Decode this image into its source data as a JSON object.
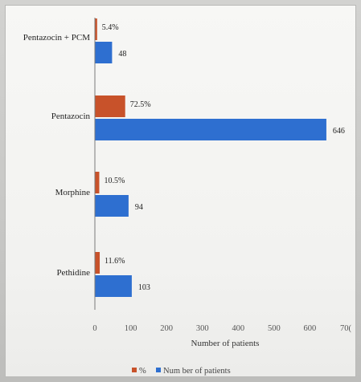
{
  "chart_data": {
    "type": "bar",
    "orientation": "horizontal",
    "categories": [
      "Pentazocin + PCM",
      "Pentazocin",
      "Morphine",
      "Pethidine"
    ],
    "series": [
      {
        "name": "%",
        "values": [
          5.4,
          72.5,
          10.5,
          11.6
        ],
        "labels": [
          "5.4%",
          "72.5%",
          "10.5%",
          "11.6%"
        ],
        "color": "#c8522a"
      },
      {
        "name": "Num ber of patients",
        "values": [
          48,
          646,
          94,
          103
        ],
        "labels": [
          "48",
          "646",
          "94",
          "103"
        ],
        "color": "#2e6fd0"
      }
    ],
    "xlabel": "Number of patients",
    "xticks": [
      "0",
      "100",
      "200",
      "300",
      "400",
      "500",
      "600",
      "70("
    ],
    "xlim": [
      0,
      700
    ],
    "grid": false,
    "legend_position": "bottom",
    "legend": [
      "%",
      "Num ber of patients"
    ]
  }
}
